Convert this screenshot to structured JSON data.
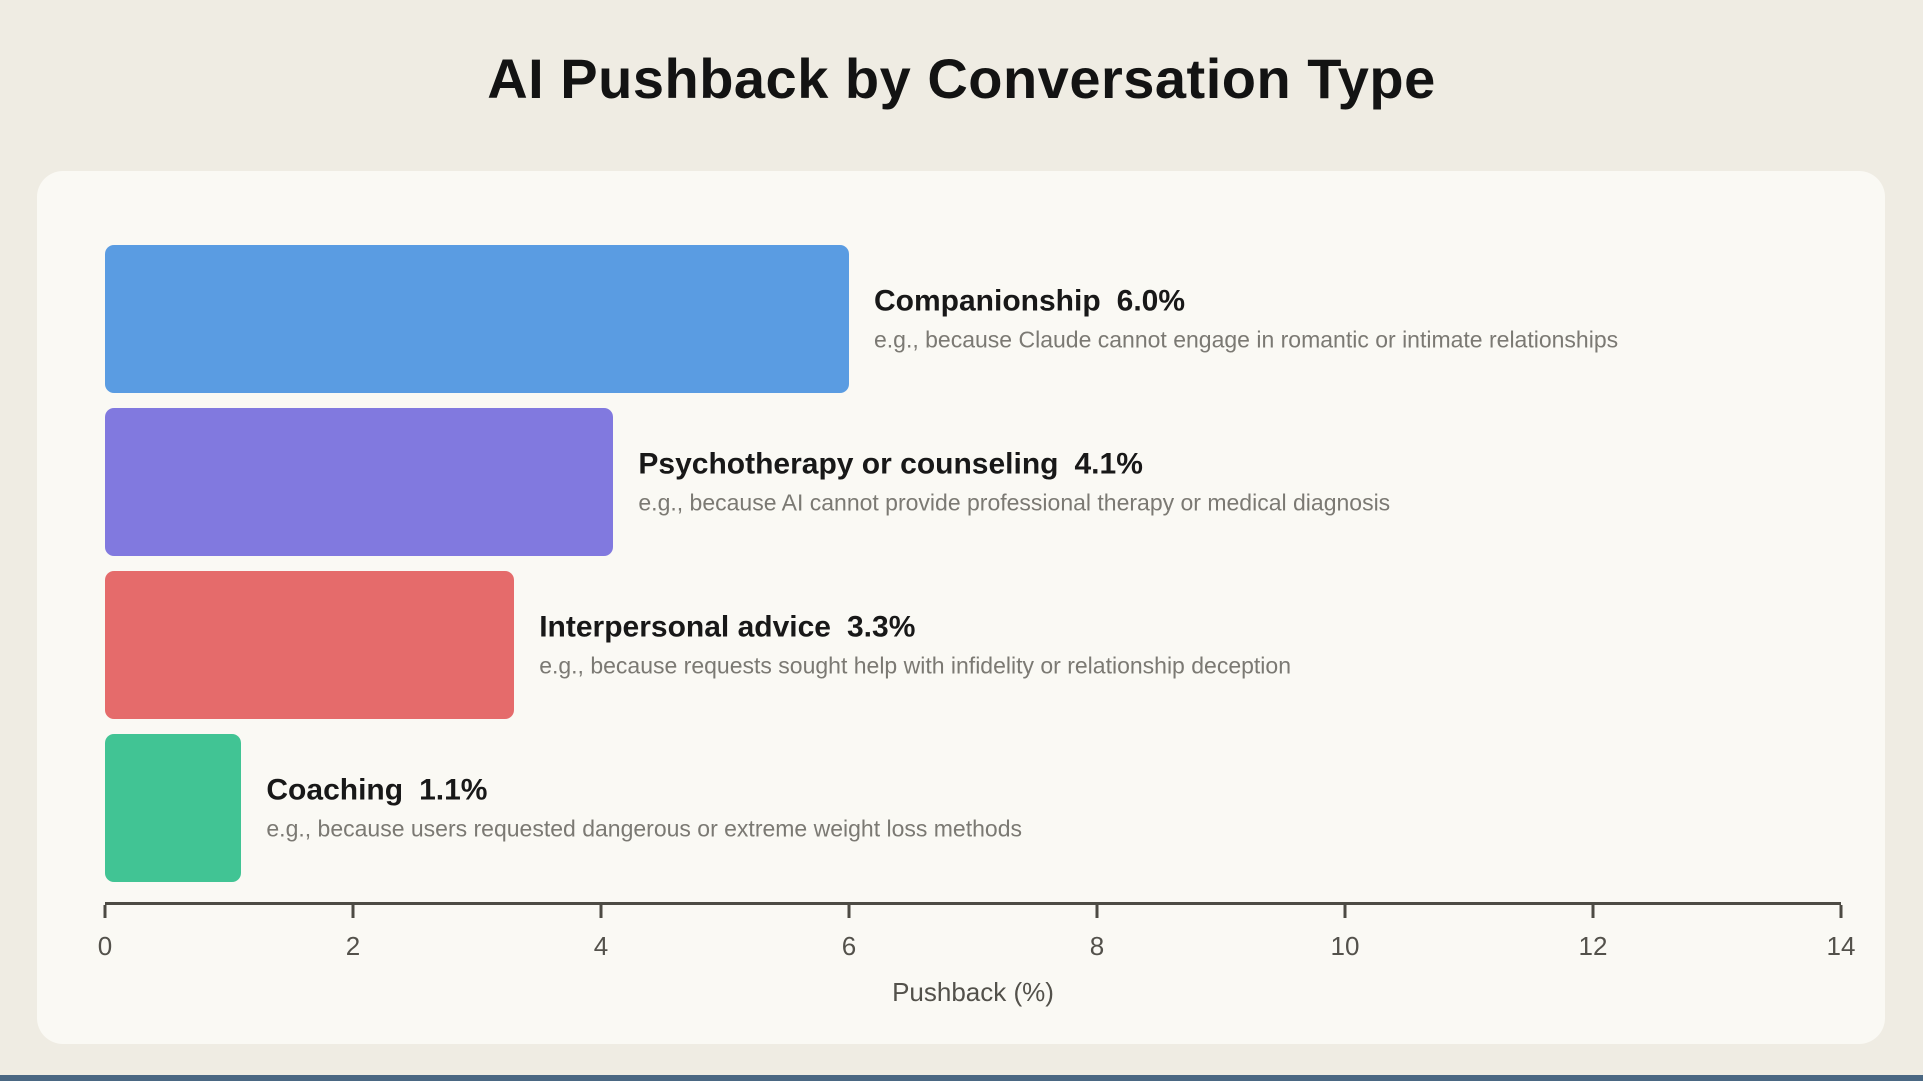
{
  "title": "AI Pushback by Conversation Type",
  "chart_data": {
    "type": "bar",
    "orientation": "horizontal",
    "title": "AI Pushback by Conversation Type",
    "xlabel": "Pushback (%)",
    "xlim": [
      0,
      14
    ],
    "xticks": [
      "0",
      "2",
      "4",
      "6",
      "8",
      "10",
      "12",
      "14"
    ],
    "grid": false,
    "legend": "none",
    "categories": [
      "Companionship",
      "Psychotherapy or counseling",
      "Interpersonal advice",
      "Coaching"
    ],
    "values": [
      6.0,
      4.1,
      3.3,
      1.1
    ],
    "value_labels": [
      "6.0%",
      "4.1%",
      "3.3%",
      "1.1%"
    ],
    "descriptions": [
      "e.g., because Claude cannot engage in romantic or intimate relationships",
      "e.g., because AI cannot provide professional therapy or medical diagnosis",
      "e.g., because requests sought help with infidelity or relationship deception",
      "e.g., because users requested dangerous or extreme weight loss methods"
    ],
    "bar_colors": [
      "#5A9CE2",
      "#8179DF",
      "#E56B6B",
      "#41C494"
    ]
  },
  "colors": {
    "page_background": "#EFECE3",
    "card_background": "#FAF9F4",
    "title_text": "#131313",
    "label_text": "#181818",
    "description_text": "#7B7973",
    "axis": "#4D4B44",
    "tick_label_text": "#53514B",
    "bottom_accent": "#4A6782"
  }
}
